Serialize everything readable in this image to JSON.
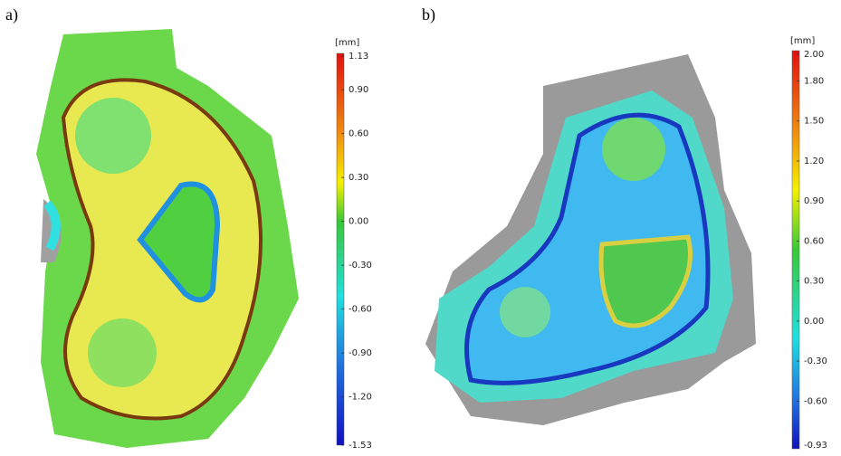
{
  "panels": [
    {
      "label": "a)",
      "unit": "[mm]",
      "ticks": [
        "1.13",
        "0.90",
        "0.60",
        "0.30",
        "0.00",
        "-0.30",
        "-0.60",
        "-0.90",
        "-1.20",
        "-1.53"
      ]
    },
    {
      "label": "b)",
      "unit": "[mm]",
      "ticks": [
        "2.00",
        "1.80",
        "1.50",
        "1.20",
        "0.90",
        "0.60",
        "0.30",
        "0.00",
        "-0.30",
        "-0.60",
        "-0.93"
      ]
    }
  ]
}
